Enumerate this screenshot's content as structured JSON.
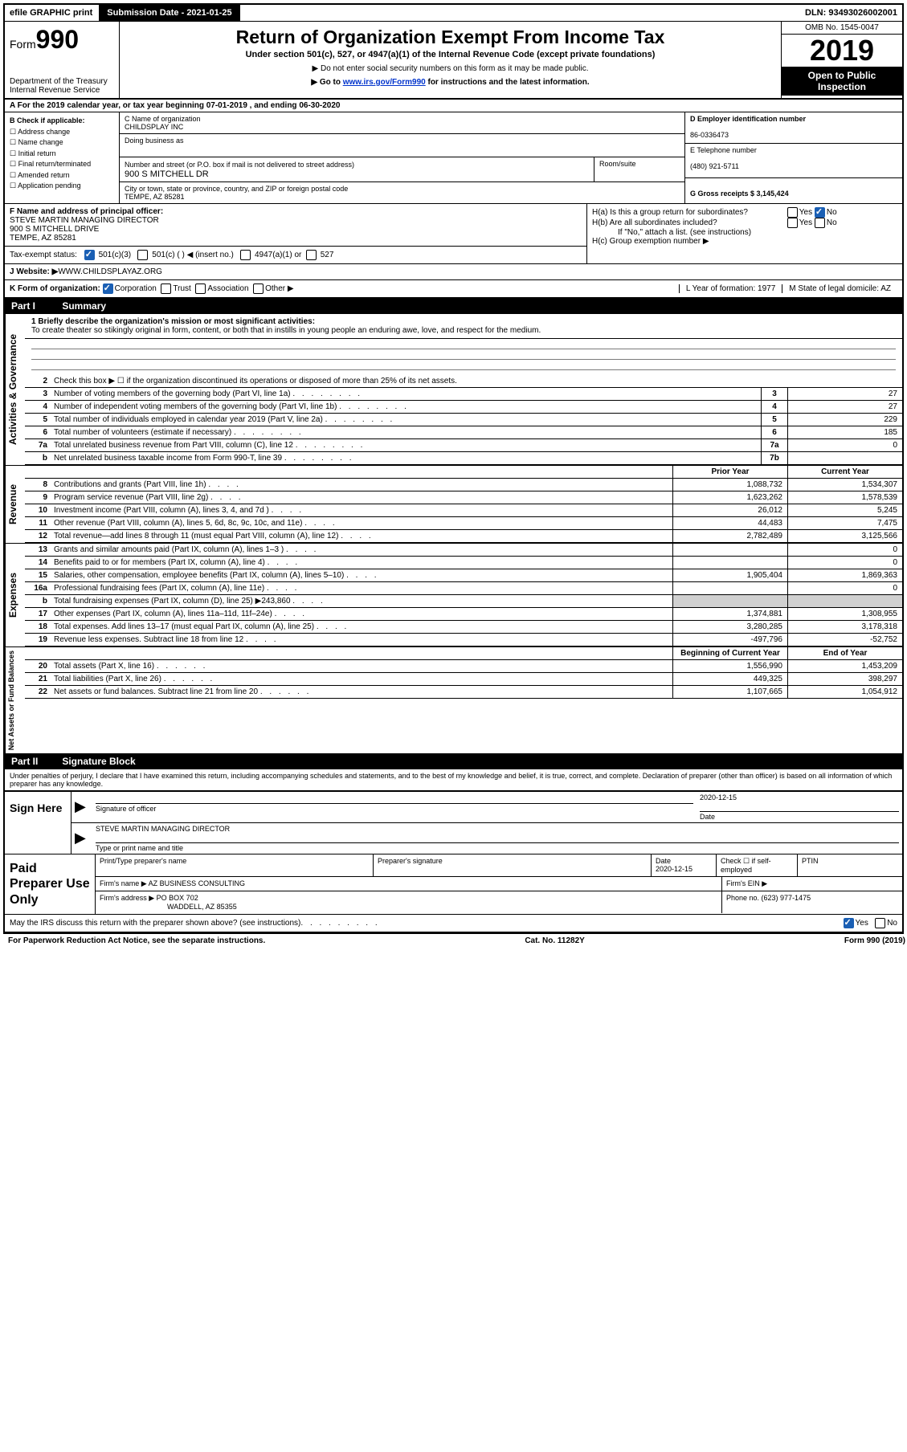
{
  "topbar": {
    "efile": "efile GRAPHIC print",
    "submission": "Submission Date - 2021-01-25",
    "dln": "DLN: 93493026002001"
  },
  "header": {
    "form_label": "Form",
    "form_num": "990",
    "dept1": "Department of the Treasury",
    "dept2": "Internal Revenue Service",
    "title": "Return of Organization Exempt From Income Tax",
    "subtitle": "Under section 501(c), 527, or 4947(a)(1) of the Internal Revenue Code (except private foundations)",
    "arrow1": "▶ Do not enter social security numbers on this form as it may be made public.",
    "arrow2_pre": "▶ Go to ",
    "arrow2_link": "www.irs.gov/Form990",
    "arrow2_post": " for instructions and the latest information.",
    "omb": "OMB No. 1545-0047",
    "year": "2019",
    "open": "Open to Public Inspection"
  },
  "row_a": "A For the 2019 calendar year, or tax year beginning 07-01-2019    , and ending 06-30-2020",
  "section_b": {
    "b_label": "B Check if applicable:",
    "b_opts": [
      "☐ Address change",
      "☐ Name change",
      "☐ Initial return",
      "☐ Final return/terminated",
      "☐ Amended return",
      "☐ Application pending"
    ],
    "c_label": "C Name of organization",
    "c_name": "CHILDSPLAY INC",
    "dba_label": "Doing business as",
    "addr_label": "Number and street (or P.O. box if mail is not delivered to street address)",
    "room_label": "Room/suite",
    "addr": "900 S MITCHELL DR",
    "city_label": "City or town, state or province, country, and ZIP or foreign postal code",
    "city": "TEMPE, AZ  85281",
    "d_label": "D Employer identification number",
    "d_val": "86-0336473",
    "e_label": "E Telephone number",
    "e_val": "(480) 921-5711",
    "g_label": "G Gross receipts $ 3,145,424"
  },
  "section_f": {
    "f_label": "F  Name and address of principal officer:",
    "f_name": "STEVE MARTIN MANAGING DIRECTOR",
    "f_addr1": "900 S MITCHELL DRIVE",
    "f_addr2": "TEMPE, AZ  85281",
    "tax_label": "Tax-exempt status:",
    "tax_501c3": "501(c)(3)",
    "tax_501c": "501(c) (  ) ◀ (insert no.)",
    "tax_4947": "4947(a)(1) or",
    "tax_527": "527",
    "ha": "H(a)  Is this a group return for subordinates?",
    "hb": "H(b)  Are all subordinates included?",
    "hb_note": "If \"No,\" attach a list. (see instructions)",
    "hc": "H(c)  Group exemption number ▶",
    "yes": "Yes",
    "no": "No"
  },
  "row_j": {
    "label": "J   Website: ▶",
    "val": "  WWW.CHILDSPLAYAZ.ORG"
  },
  "row_k": {
    "label": "K Form of organization:",
    "corp": "Corporation",
    "trust": "Trust",
    "assoc": "Association",
    "other": "Other ▶",
    "l_label": "L Year of formation: 1977",
    "m_label": "M State of legal domicile: AZ"
  },
  "part1": {
    "header_label": "Part I",
    "header_title": "Summary",
    "line1_label": "1  Briefly describe the organization's mission or most significant activities:",
    "line1_text": "To create theater so stikingly original in form, content, or both that in instills in young people an enduring awe, love, and respect for the medium.",
    "line2": "Check this box ▶ ☐  if the organization discontinued its operations or disposed of more than 25% of its net assets.",
    "lines_gov": [
      {
        "n": "3",
        "d": "Number of voting members of the governing body (Part VI, line 1a)",
        "b": "3",
        "v": "27"
      },
      {
        "n": "4",
        "d": "Number of independent voting members of the governing body (Part VI, line 1b)",
        "b": "4",
        "v": "27"
      },
      {
        "n": "5",
        "d": "Total number of individuals employed in calendar year 2019 (Part V, line 2a)",
        "b": "5",
        "v": "229"
      },
      {
        "n": "6",
        "d": "Total number of volunteers (estimate if necessary)",
        "b": "6",
        "v": "185"
      },
      {
        "n": "7a",
        "d": "Total unrelated business revenue from Part VIII, column (C), line 12",
        "b": "7a",
        "v": "0"
      },
      {
        "n": "b",
        "d": "Net unrelated business taxable income from Form 990-T, line 39",
        "b": "7b",
        "v": ""
      }
    ],
    "col_prior": "Prior Year",
    "col_current": "Current Year",
    "lines_rev": [
      {
        "n": "8",
        "d": "Contributions and grants (Part VIII, line 1h)",
        "p": "1,088,732",
        "c": "1,534,307"
      },
      {
        "n": "9",
        "d": "Program service revenue (Part VIII, line 2g)",
        "p": "1,623,262",
        "c": "1,578,539"
      },
      {
        "n": "10",
        "d": "Investment income (Part VIII, column (A), lines 3, 4, and 7d )",
        "p": "26,012",
        "c": "5,245"
      },
      {
        "n": "11",
        "d": "Other revenue (Part VIII, column (A), lines 5, 6d, 8c, 9c, 10c, and 11e)",
        "p": "44,483",
        "c": "7,475"
      },
      {
        "n": "12",
        "d": "Total revenue—add lines 8 through 11 (must equal Part VIII, column (A), line 12)",
        "p": "2,782,489",
        "c": "3,125,566"
      }
    ],
    "lines_exp": [
      {
        "n": "13",
        "d": "Grants and similar amounts paid (Part IX, column (A), lines 1–3 )",
        "p": "",
        "c": "0"
      },
      {
        "n": "14",
        "d": "Benefits paid to or for members (Part IX, column (A), line 4)",
        "p": "",
        "c": "0"
      },
      {
        "n": "15",
        "d": "Salaries, other compensation, employee benefits (Part IX, column (A), lines 5–10)",
        "p": "1,905,404",
        "c": "1,869,363"
      },
      {
        "n": "16a",
        "d": "Professional fundraising fees (Part IX, column (A), line 11e)",
        "p": "",
        "c": "0"
      },
      {
        "n": "b",
        "d": "Total fundraising expenses (Part IX, column (D), line 25) ▶243,860",
        "p": "shaded",
        "c": "shaded"
      },
      {
        "n": "17",
        "d": "Other expenses (Part IX, column (A), lines 11a–11d, 11f–24e)",
        "p": "1,374,881",
        "c": "1,308,955"
      },
      {
        "n": "18",
        "d": "Total expenses. Add lines 13–17 (must equal Part IX, column (A), line 25)",
        "p": "3,280,285",
        "c": "3,178,318"
      },
      {
        "n": "19",
        "d": "Revenue less expenses. Subtract line 18 from line 12",
        "p": "-497,796",
        "c": "-52,752"
      }
    ],
    "col_begin": "Beginning of Current Year",
    "col_end": "End of Year",
    "lines_net": [
      {
        "n": "20",
        "d": "Total assets (Part X, line 16)",
        "p": "1,556,990",
        "c": "1,453,209"
      },
      {
        "n": "21",
        "d": "Total liabilities (Part X, line 26)",
        "p": "449,325",
        "c": "398,297"
      },
      {
        "n": "22",
        "d": "Net assets or fund balances. Subtract line 21 from line 20",
        "p": "1,107,665",
        "c": "1,054,912"
      }
    ]
  },
  "part2": {
    "header_label": "Part II",
    "header_title": "Signature Block",
    "decl": "Under penalties of perjury, I declare that I have examined this return, including accompanying schedules and statements, and to the best of my knowledge and belief, it is true, correct, and complete. Declaration of preparer (other than officer) is based on all information of which preparer has any knowledge."
  },
  "sign": {
    "label": "Sign Here",
    "sig_officer": "Signature of officer",
    "date_label": "Date",
    "date_val": "2020-12-15",
    "name": "STEVE MARTIN  MANAGING DIRECTOR",
    "name_label": "Type or print name and title"
  },
  "prep": {
    "label": "Paid Preparer Use Only",
    "print_label": "Print/Type preparer's name",
    "sig_label": "Preparer's signature",
    "date_label": "Date",
    "date_val": "2020-12-15",
    "check_label": "Check ☐  if self-employed",
    "ptin_label": "PTIN",
    "firm_name_label": "Firm's name     ▶",
    "firm_name": "AZ BUSINESS CONSULTING",
    "firm_ein_label": "Firm's EIN ▶",
    "firm_addr_label": "Firm's address ▶",
    "firm_addr1": "PO BOX 702",
    "firm_addr2": "WADDELL, AZ  85355",
    "phone_label": "Phone no. (623) 977-1475"
  },
  "discuss": {
    "text": "May the IRS discuss this return with the preparer shown above? (see instructions)",
    "yes": "Yes",
    "no": "No"
  },
  "footer": {
    "left": "For Paperwork Reduction Act Notice, see the separate instructions.",
    "mid": "Cat. No. 11282Y",
    "right": "Form 990 (2019)"
  },
  "sidelabels": {
    "gov": "Activities & Governance",
    "rev": "Revenue",
    "exp": "Expenses",
    "net": "Net Assets or Fund Balances"
  }
}
